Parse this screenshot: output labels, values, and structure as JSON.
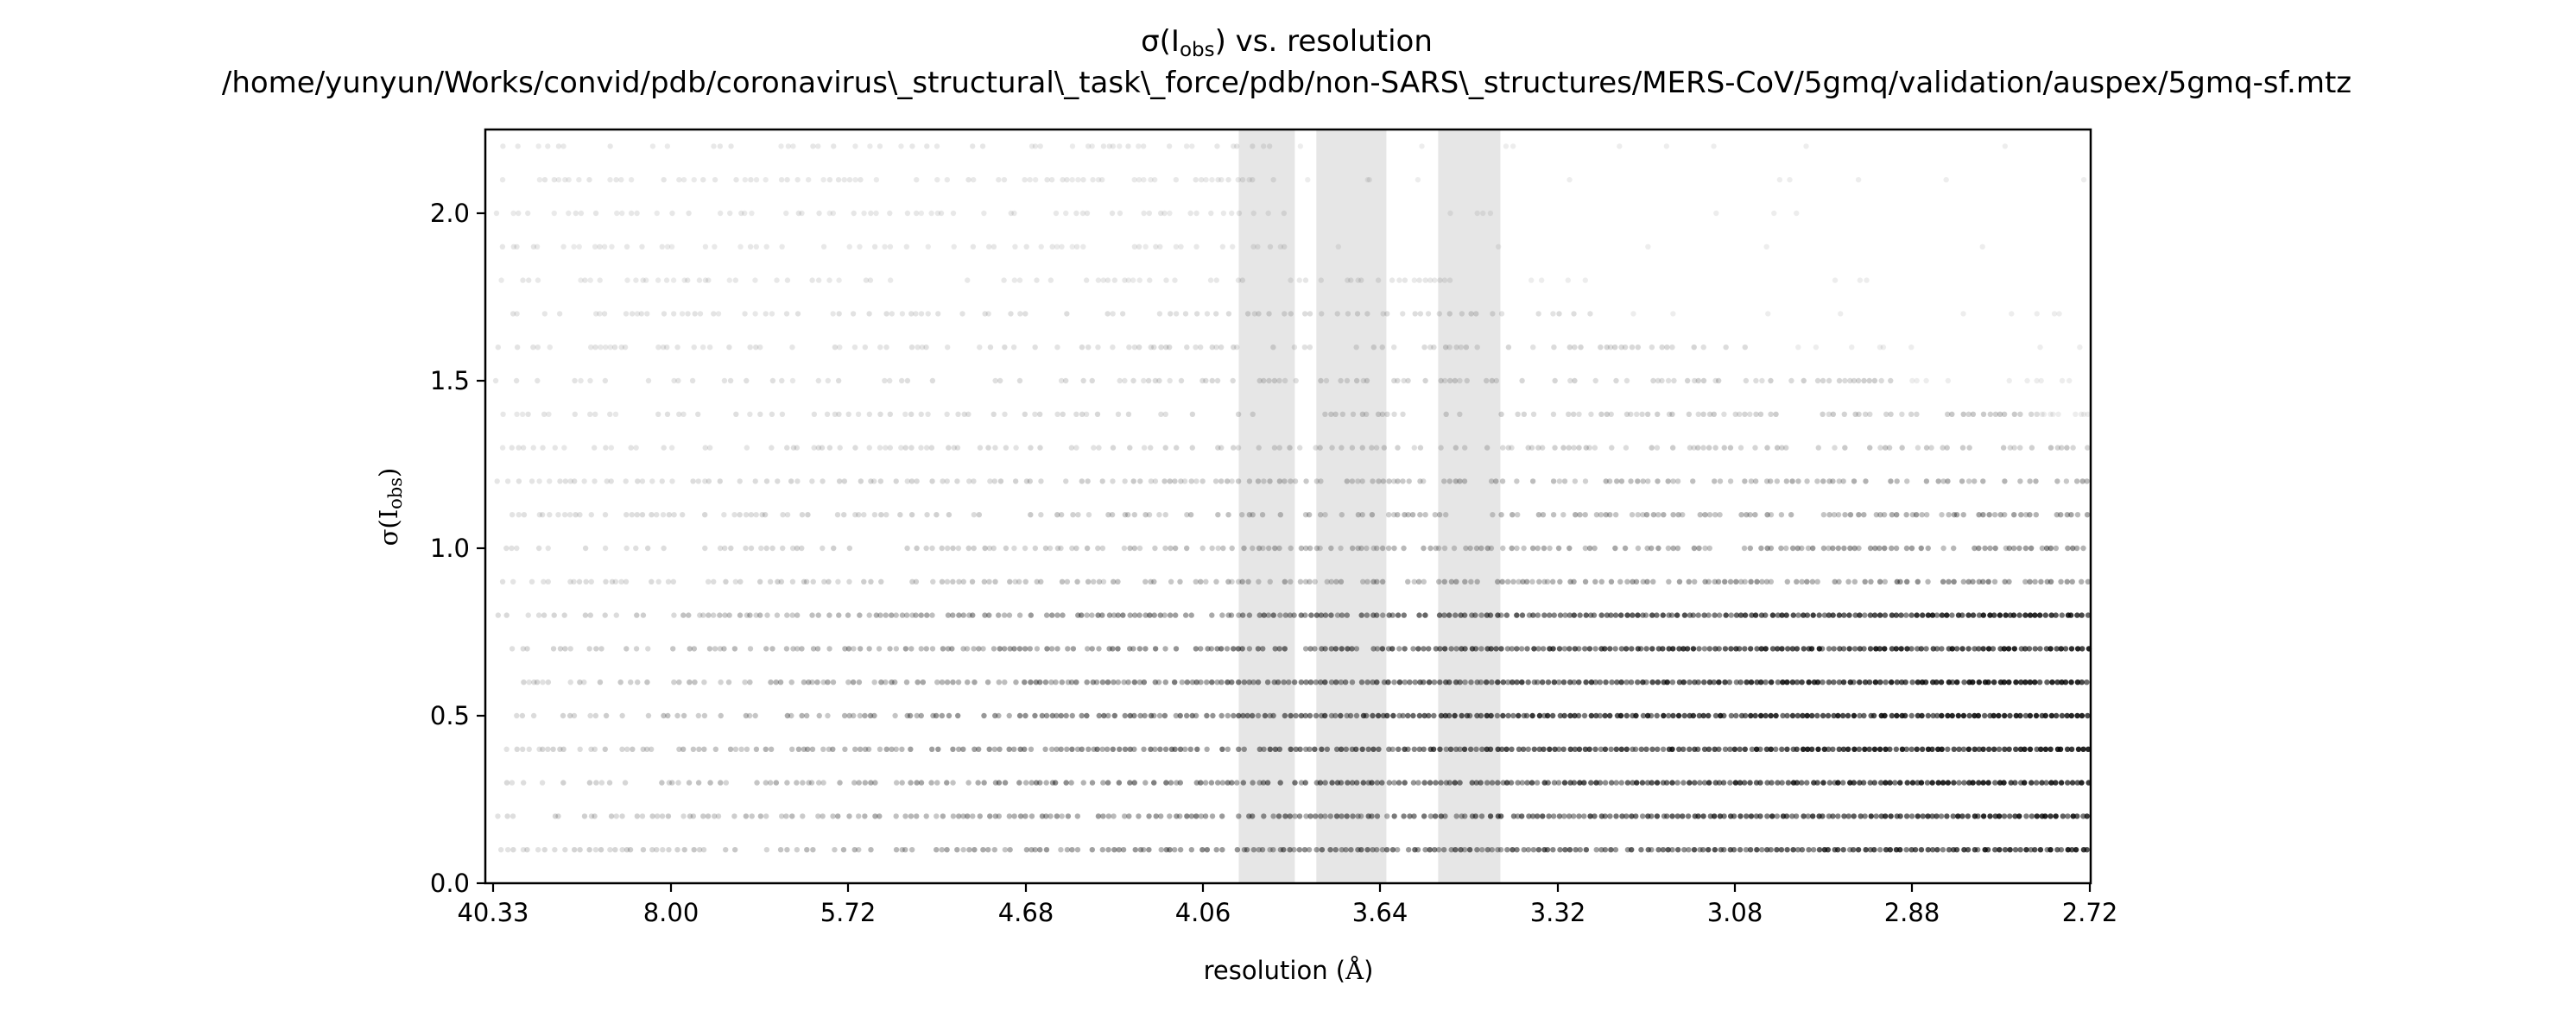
{
  "chart_data": {
    "type": "scatter",
    "title_prefix": "σ(I",
    "title_sub": "obs",
    "title_suffix": ") vs. resolution",
    "subtitle": "/home/yunyun/Works/convid/pdb/coronavirus\\_structural\\_task\\_force/pdb/non-SARS\\_structures/MERS-CoV/5gmq/validation/auspex/5gmq-sf.mtz",
    "xlabel_prefix": "resolution (",
    "xlabel_unit": "Å",
    "xlabel_suffix": ")",
    "ylabel_prefix": "σ(I",
    "ylabel_sub": "obs",
    "ylabel_suffix": ")",
    "x_axis": "1/d^2 (reciprocal resolution squared, labelled in Å)",
    "x_ticks": [
      "40.33",
      "8.00",
      "5.72",
      "4.68",
      "4.06",
      "3.64",
      "3.32",
      "3.08",
      "2.88",
      "2.72"
    ],
    "y_ticks": [
      "0.0",
      "0.5",
      "1.0",
      "1.5",
      "2.0"
    ],
    "ylim": [
      0,
      2.25
    ],
    "xlim_resolution": [
      40.33,
      2.72
    ],
    "sigma_levels": [
      0.1,
      0.2,
      0.3,
      0.4,
      0.5,
      0.6,
      0.7,
      0.8,
      0.9,
      1.0,
      1.1,
      1.2,
      1.3,
      1.4,
      1.5,
      1.6,
      1.7,
      1.8,
      1.9,
      2.0,
      2.1,
      2.2
    ],
    "ice_ring_bands_resolution": [
      [
        3.97,
        3.83
      ],
      [
        3.78,
        3.63
      ],
      [
        3.53,
        3.42
      ]
    ],
    "marker_color": "#000000",
    "band_color": "#e6e6e6",
    "grid": false,
    "legend": "none"
  }
}
